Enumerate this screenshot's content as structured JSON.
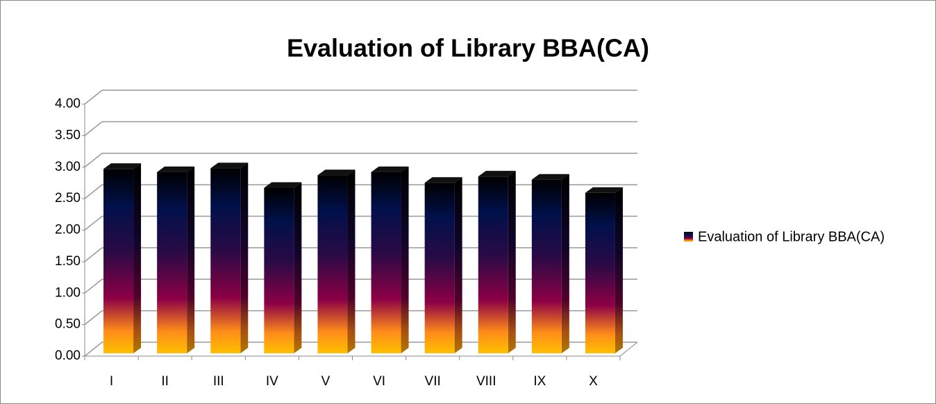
{
  "chart_data": {
    "type": "bar3d",
    "title": "Evaluation of Library BBA(CA)",
    "categories": [
      "I",
      "II",
      "III",
      "IV",
      "V",
      "VI",
      "VII",
      "VIII",
      "IX",
      "X"
    ],
    "series": [
      {
        "name": "Evaluation of Library BBA(CA)",
        "values": [
          2.95,
          2.9,
          2.96,
          2.65,
          2.85,
          2.9,
          2.73,
          2.83,
          2.78,
          2.57
        ]
      }
    ],
    "ylim": [
      0,
      4
    ],
    "yticks": [
      {
        "value": 0,
        "label": "0.00"
      },
      {
        "value": 0.5,
        "label": "0.50"
      },
      {
        "value": 1,
        "label": "1.00"
      },
      {
        "value": 1.5,
        "label": "1.50"
      },
      {
        "value": 2,
        "label": "2.00"
      },
      {
        "value": 2.5,
        "label": "2.50"
      },
      {
        "value": 3,
        "label": "3.00"
      },
      {
        "value": 3.5,
        "label": "3.50"
      },
      {
        "value": 4,
        "label": "4.00"
      }
    ],
    "grid": true,
    "legend": "right"
  }
}
